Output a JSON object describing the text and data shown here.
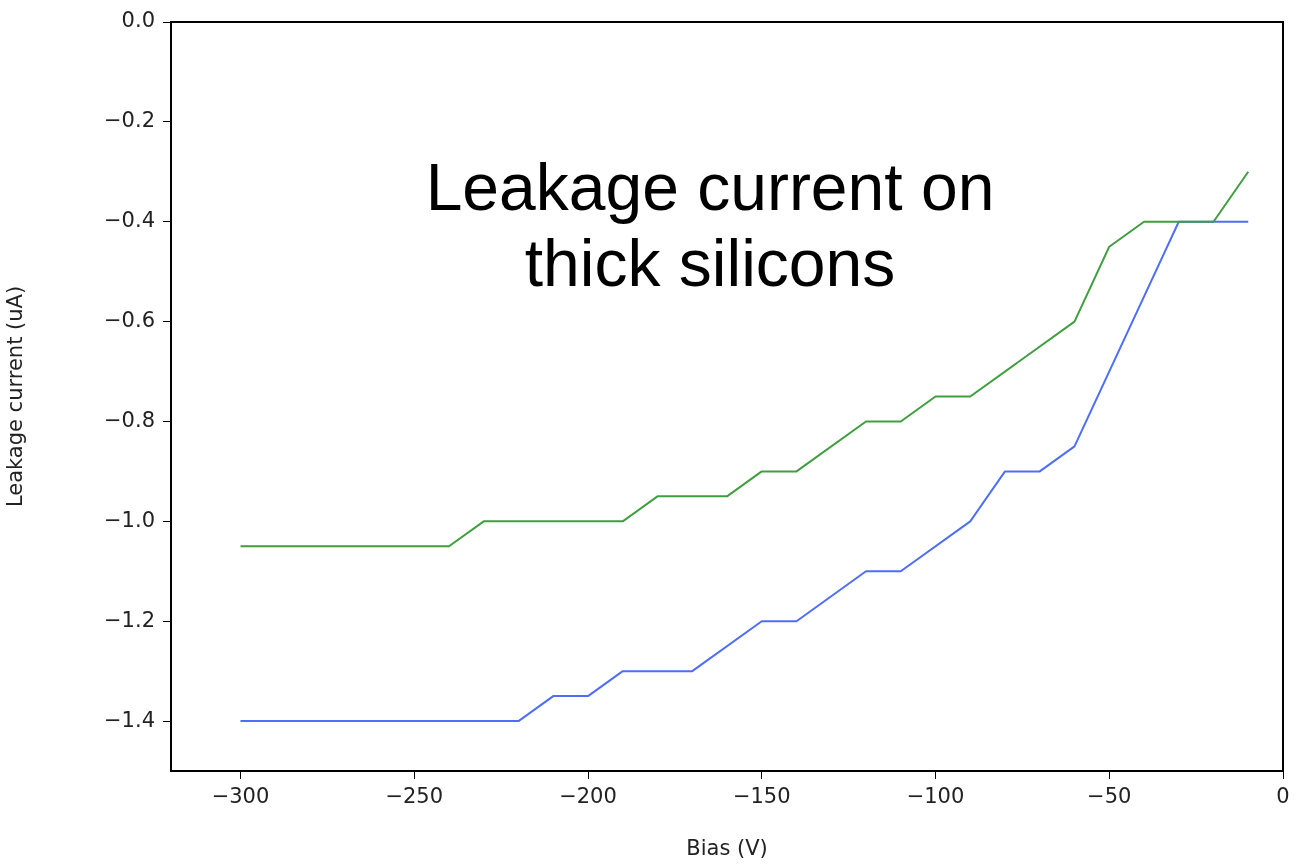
{
  "chart_data": {
    "type": "line",
    "xlabel": "Bias (V)",
    "ylabel": "Leakage current (uA)",
    "annotations": [
      "Leakage current on thick silicons"
    ],
    "xlim": [
      -320,
      0
    ],
    "xticks": [
      -300,
      -250,
      -200,
      -150,
      -100,
      -50,
      0
    ],
    "ylim": [
      -1.5,
      0
    ],
    "yticks": [
      {
        "value": 0,
        "label": "0.0"
      },
      {
        "value": -0.2,
        "label": "−0.2"
      },
      {
        "value": -0.4,
        "label": "−0.4"
      },
      {
        "value": -0.6,
        "label": "−0.6"
      },
      {
        "value": -0.8,
        "label": "−0.8"
      },
      {
        "value": -1.0,
        "label": "−1.0"
      },
      {
        "value": -1.2,
        "label": "−1.2"
      },
      {
        "value": -1.4,
        "label": "−1.4"
      }
    ],
    "grid": false,
    "legend": false,
    "marker": "none",
    "line_style": "solid",
    "series": [
      {
        "color": "#3f9f3f",
        "x": [
          -300,
          -240,
          -230,
          -190,
          -180,
          -160,
          -150,
          -140,
          -120,
          -110,
          -100,
          -90,
          -60,
          -50,
          -40,
          -20,
          -10
        ],
        "values": [
          -1.05,
          -1.05,
          -1.0,
          -1.0,
          -0.95,
          -0.95,
          -0.9,
          -0.9,
          -0.8,
          -0.8,
          -0.75,
          -0.75,
          -0.6,
          -0.45,
          -0.4,
          -0.4,
          -0.3
        ]
      },
      {
        "color": "#4f6ef7",
        "x": [
          -300,
          -220,
          -210,
          -200,
          -190,
          -170,
          -150,
          -140,
          -120,
          -110,
          -90,
          -80,
          -70,
          -60,
          -30,
          -10
        ],
        "values": [
          -1.4,
          -1.4,
          -1.35,
          -1.35,
          -1.3,
          -1.3,
          -1.2,
          -1.2,
          -1.1,
          -1.1,
          -1.0,
          -0.9,
          -0.9,
          -0.85,
          -0.4,
          -0.4
        ]
      }
    ]
  }
}
